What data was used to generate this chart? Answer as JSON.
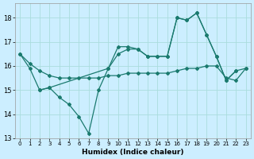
{
  "xlabel": "Humidex (Indice chaleur)",
  "background_color": "#cceeff",
  "grid_color": "#aadddd",
  "line_color": "#1a7a6e",
  "xlim": [
    -0.5,
    23.5
  ],
  "ylim": [
    13.0,
    18.6
  ],
  "yticks": [
    13,
    14,
    15,
    16,
    17,
    18
  ],
  "xticks": [
    0,
    1,
    2,
    3,
    4,
    5,
    6,
    7,
    8,
    9,
    10,
    11,
    12,
    13,
    14,
    15,
    16,
    17,
    18,
    19,
    20,
    21,
    22,
    23
  ],
  "series": [
    {
      "x": [
        0,
        1,
        2,
        3,
        4,
        5,
        6,
        7,
        8,
        9,
        10,
        11,
        12,
        13,
        14,
        15,
        16,
        17,
        18,
        19,
        20,
        21,
        22
      ],
      "y": [
        16.5,
        15.9,
        15.0,
        15.1,
        14.7,
        14.4,
        13.9,
        13.2,
        15.0,
        15.9,
        16.5,
        16.7,
        16.7,
        16.4,
        16.4,
        16.4,
        18.0,
        17.9,
        18.2,
        17.3,
        16.4,
        15.4,
        15.8
      ]
    },
    {
      "x": [
        0,
        1,
        2,
        3,
        4,
        5,
        6,
        7,
        8,
        9,
        10,
        11,
        12,
        13,
        14,
        15,
        16,
        17,
        18,
        19,
        20,
        21,
        22,
        23
      ],
      "y": [
        16.5,
        16.1,
        15.8,
        15.6,
        15.5,
        15.5,
        15.5,
        15.5,
        15.5,
        15.6,
        15.6,
        15.7,
        15.7,
        15.7,
        15.7,
        15.7,
        15.8,
        15.9,
        15.9,
        16.0,
        16.0,
        15.5,
        15.4,
        15.9
      ]
    },
    {
      "x": [
        2,
        3,
        9,
        10,
        11,
        12,
        13,
        14,
        15,
        16,
        17,
        18,
        19,
        20,
        21,
        22,
        23
      ],
      "y": [
        15.0,
        15.1,
        15.9,
        16.8,
        16.8,
        16.7,
        16.4,
        16.4,
        16.4,
        18.0,
        17.9,
        18.2,
        17.3,
        16.4,
        15.4,
        15.8,
        15.9
      ]
    }
  ]
}
